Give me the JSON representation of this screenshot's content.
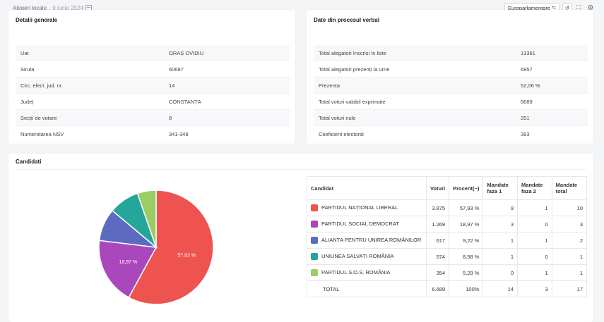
{
  "breadcrumb": {
    "title": "Alegeri locale",
    "date": "9 iunie 2024"
  },
  "toolbar": {
    "selector_label": "Europarlamentare",
    "reset_icon": "reset-icon",
    "fullscreen_icon": "fullscreen-icon",
    "settings_icon": "gear-icon"
  },
  "general": {
    "title": "Detalii generale",
    "rows": [
      {
        "key": "Uat",
        "value": "ORAȘ OVIDIU"
      },
      {
        "key": "Siruta",
        "value": "60687"
      },
      {
        "key": "Circ. elect. jud. nr.",
        "value": "14"
      },
      {
        "key": "Județ",
        "value": "CONSTANȚA"
      },
      {
        "key": "Secții de votare",
        "value": "8"
      },
      {
        "key": "Numerotarea NSV",
        "value": "341-348"
      }
    ]
  },
  "verbal": {
    "title": "Date din procesul verbal",
    "rows": [
      {
        "key": "Total alegatori înscriși în liste",
        "value": "13361"
      },
      {
        "key": "Total alegatori prezenți la urne",
        "value": "6957"
      },
      {
        "key": "Prezenta",
        "value": "52,06 %"
      },
      {
        "key": "Total voturi valabil exprimate",
        "value": "6689"
      },
      {
        "key": "Total voturi nule",
        "value": "251"
      },
      {
        "key": "Coeficient electoral",
        "value": "393"
      }
    ]
  },
  "candidates": {
    "title": "Candidati",
    "headers": {
      "candidate": "Candidat",
      "votes": "Voturi",
      "percent": "Procent(~)",
      "m1": "Mandate faza 1",
      "m2": "Mandate faza 2",
      "mt": "Mandate total"
    },
    "rows": [
      {
        "name": "PARTIDUL NAȚIONAL LIBERAL",
        "votes": "3.875",
        "percent": "57,93 %",
        "m1": "9",
        "m2": "1",
        "mt": "10",
        "color": "#ef5350"
      },
      {
        "name": "PARTIDUL SOCIAL DEMOCRAT",
        "votes": "1.269",
        "percent": "18,97 %",
        "m1": "3",
        "m2": "0",
        "mt": "3",
        "color": "#ab47bc"
      },
      {
        "name": "ALIANȚA PENTRU UNIREA ROMÂNILOR",
        "votes": "617",
        "percent": "9,22 %",
        "m1": "1",
        "m2": "1",
        "mt": "2",
        "color": "#5c6bc0"
      },
      {
        "name": "UNIUNEA SALVAȚI ROMÂNIA",
        "votes": "574",
        "percent": "8,58 %",
        "m1": "1",
        "m2": "0",
        "mt": "1",
        "color": "#26a69a"
      },
      {
        "name": "PARTIDUL S.O.S. ROMÂNIA",
        "votes": "354",
        "percent": "5,29 %",
        "m1": "0",
        "m2": "1",
        "mt": "1",
        "color": "#9ccc65"
      }
    ],
    "total": {
      "name": "TOTAL",
      "votes": "6.689",
      "percent": "100%",
      "m1": "14",
      "m2": "3",
      "mt": "17"
    }
  },
  "chart_data": {
    "type": "pie",
    "categories": [
      "PARTIDUL NAȚIONAL LIBERAL",
      "PARTIDUL SOCIAL DEMOCRAT",
      "ALIANȚA PENTRU UNIREA ROMÂNILOR",
      "UNIUNEA SALVAȚI ROMÂNIA",
      "PARTIDUL S.O.S. ROMÂNIA"
    ],
    "values": [
      57.93,
      18.97,
      9.22,
      8.58,
      5.29
    ],
    "colors": [
      "#ef5350",
      "#ab47bc",
      "#5c6bc0",
      "#26a69a",
      "#9ccc65"
    ],
    "labels": [
      "57,93 %",
      "18,97 %",
      "",
      "",
      ""
    ]
  }
}
